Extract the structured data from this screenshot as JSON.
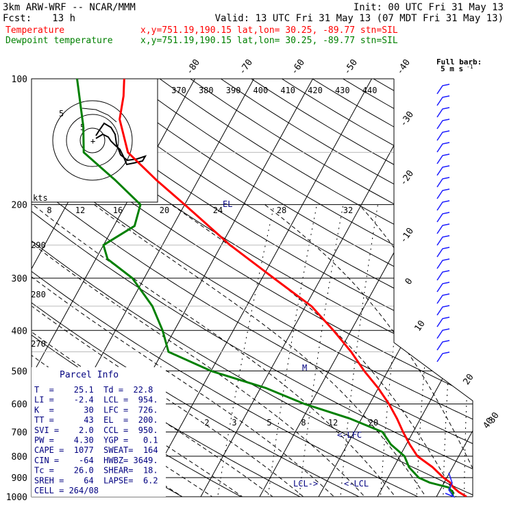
{
  "header": {
    "model": "3km ARW-WRF -- NCAR/MMM",
    "init": "Init: 00 UTC Fri 31 May 13",
    "fcst_label": "Fcst:",
    "fcst_value": "13 h",
    "valid": "Valid: 13 UTC Fri 31 May 13 (07 MDT Fri 31 May 13)"
  },
  "legend": {
    "temperature": {
      "name": "Temperature",
      "loc": "x,y=751.19,190.15   lat,lon= 30.25, -89.77   stn=SIL",
      "color": "#ff0000"
    },
    "dewpoint": {
      "name": "Dewpoint temperature",
      "loc": "x,y=751.19,190.15   lat,lon= 30.25, -89.77   stn=SIL",
      "color": "#008000"
    }
  },
  "wind_key": {
    "title": "Full barb:",
    "value": "5 m s",
    "exp": "-1"
  },
  "parcel_info": {
    "title": "Parcel Info",
    "rows": [
      "T  =    25.1  Td =  22.8",
      "LI =    -2.4  LCL =  954.",
      "K  =      30  LFC =  726.",
      "TT =      43  EL  =  200.",
      "SVI =    2.0  CCL =  950.",
      "PW =    4.30  YGP =   0.1",
      "CAPE =  1077  SWEAT=  164",
      "CIN =    -64  HWBZ= 3649.",
      "Tc =    26.0  SHEAR=  18.",
      "SREH =    64  LAPSE=  6.2",
      "CELL = 264/08"
    ]
  },
  "hodograph": {
    "units": "kts",
    "ring_labels": [
      "5",
      "5"
    ]
  },
  "chart_data": {
    "type": "line",
    "title": "",
    "xlabel": "",
    "ylabel": "",
    "pressure_labels": [
      100,
      200,
      300,
      400,
      500,
      600,
      700,
      800,
      900,
      1000
    ],
    "isotherm_labels": [
      "-80",
      "-70",
      "-60",
      "-50",
      "-40",
      "-30",
      "-20",
      "-10",
      "0",
      "10",
      "20",
      "30",
      "40"
    ],
    "theta_labels": [
      "370",
      "380",
      "390",
      "400",
      "410",
      "420",
      "430",
      "440"
    ],
    "lower_theta_labels": [
      "290",
      "280",
      "270"
    ],
    "mixing_ratio_labels_upper": [
      "8",
      "12",
      "16",
      "20",
      "24",
      "28",
      "32"
    ],
    "mixing_ratio_labels_lower": [
      "2",
      "3",
      "5",
      "8",
      "12",
      "20"
    ],
    "annotations": [
      "EL",
      "M",
      "<-LFC",
      "LCL->",
      "<-LCL"
    ],
    "series": [
      {
        "name": "Temperature",
        "color": "#ff0000",
        "points": [
          [
            1000,
            25.1
          ],
          [
            975,
            23.4
          ],
          [
            950,
            22.0
          ],
          [
            925,
            21.0
          ],
          [
            900,
            19.4
          ],
          [
            850,
            16.6
          ],
          [
            800,
            13.0
          ],
          [
            750,
            10.6
          ],
          [
            700,
            8.3
          ],
          [
            650,
            6.0
          ],
          [
            600,
            3.3
          ],
          [
            550,
            0.0
          ],
          [
            500,
            -4.0
          ],
          [
            450,
            -8.0
          ],
          [
            400,
            -13.0
          ],
          [
            350,
            -19.0
          ],
          [
            300,
            -28.0
          ],
          [
            250,
            -38.5
          ],
          [
            200,
            -50.0
          ],
          [
            175,
            -57.0
          ],
          [
            150,
            -64.5
          ],
          [
            125,
            -69.0
          ],
          [
            110,
            -70.5
          ],
          [
            100,
            -72.0
          ]
        ]
      },
      {
        "name": "Dewpoint temperature",
        "color": "#008000",
        "points": [
          [
            1000,
            22.8
          ],
          [
            975,
            22.3
          ],
          [
            950,
            21.2
          ],
          [
            925,
            17.5
          ],
          [
            900,
            15.2
          ],
          [
            850,
            12.6
          ],
          [
            800,
            10.8
          ],
          [
            750,
            7.4
          ],
          [
            700,
            4.8
          ],
          [
            650,
            -2.0
          ],
          [
            600,
            -11.0
          ],
          [
            550,
            -19.0
          ],
          [
            500,
            -30.0
          ],
          [
            450,
            -39.0
          ],
          [
            400,
            -42.0
          ],
          [
            350,
            -46.0
          ],
          [
            300,
            -52.0
          ],
          [
            270,
            -58.0
          ],
          [
            250,
            -60.0
          ],
          [
            225,
            -56.5
          ],
          [
            200,
            -57.5
          ],
          [
            175,
            -64.0
          ],
          [
            150,
            -72.0
          ],
          [
            130,
            -74.5
          ],
          [
            110,
            -78.0
          ],
          [
            100,
            -80.0
          ]
        ]
      }
    ]
  }
}
